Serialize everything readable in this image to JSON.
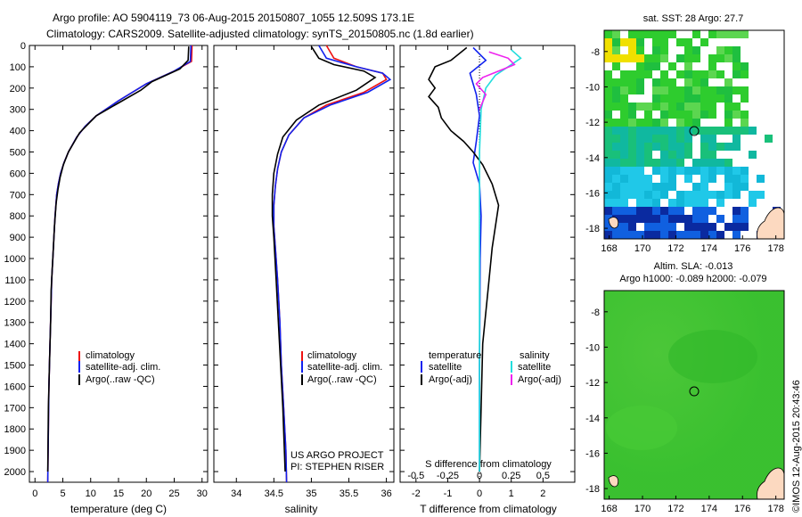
{
  "header": {
    "line1": "Argo profile: AO 5904119_73 06-Aug-2015 20150807_1055 12.509S 173.1E",
    "line2": "Climatology: CARS2009. Satellite-adjusted climatology: synTS_20150805.nc (1.8d earlier)"
  },
  "side_text": "©IMOS 12-Aug-2015 20:43:46",
  "colors": {
    "climatology": "#ee1111",
    "satellite": "#1122ee",
    "argo": "#000000",
    "sal_satellite": "#22dddd",
    "sal_argo": "#ee22ee"
  },
  "chart_data": [
    {
      "name": "temperature",
      "type": "line",
      "xlabel": "temperature (deg C)",
      "ylabel": "",
      "xlim": [
        -1,
        31
      ],
      "ylim": [
        2050,
        0
      ],
      "xticks": [
        0,
        5,
        10,
        15,
        20,
        25,
        30
      ],
      "yticks": [
        0,
        100,
        200,
        300,
        400,
        500,
        600,
        700,
        800,
        900,
        1000,
        1100,
        1200,
        1300,
        1400,
        1500,
        1600,
        1700,
        1800,
        1900,
        2000
      ],
      "legend": [
        "climatology",
        "satellite-adj. clim.",
        "Argo(..raw -QC)"
      ],
      "series": [
        {
          "name": "climatology",
          "color": "#ee1111",
          "x": [
            28.2,
            28.1,
            25,
            20,
            15,
            11,
            9,
            7.5,
            6,
            5.2,
            4.6,
            4.2,
            3.9,
            3.6,
            3.4,
            3.2,
            3.0,
            2.9,
            2.7,
            2.5,
            2.4,
            2.3
          ],
          "y": [
            0,
            75,
            120,
            180,
            260,
            330,
            380,
            430,
            500,
            550,
            600,
            650,
            700,
            800,
            900,
            1000,
            1100,
            1200,
            1400,
            1600,
            1800,
            2050
          ]
        },
        {
          "name": "satellite-adj. clim.",
          "color": "#1122ee",
          "x": [
            28.0,
            27.9,
            25,
            20,
            15,
            11,
            9,
            7.5,
            6,
            5.2,
            4.6,
            4.2,
            3.9,
            3.6,
            3.4,
            3.2,
            3.0,
            2.9,
            2.7,
            2.5,
            2.4,
            2.3
          ],
          "y": [
            0,
            75,
            120,
            180,
            260,
            330,
            380,
            430,
            500,
            550,
            600,
            650,
            700,
            800,
            900,
            1000,
            1100,
            1200,
            1400,
            1600,
            1800,
            2050
          ]
        },
        {
          "name": "Argo(..raw -QC)",
          "color": "#000000",
          "x": [
            27.6,
            27.5,
            26,
            21,
            19,
            15,
            11,
            8,
            6,
            5.1,
            4.5,
            4.1,
            3.8,
            3.5,
            3.3,
            3.1,
            2.9,
            2.8,
            2.6,
            2.4,
            2.3
          ],
          "y": [
            5,
            70,
            110,
            170,
            210,
            270,
            330,
            410,
            500,
            560,
            620,
            680,
            740,
            850,
            950,
            1050,
            1150,
            1300,
            1500,
            1700,
            2000
          ]
        }
      ]
    },
    {
      "name": "salinity",
      "type": "line",
      "xlabel": "salinity",
      "ylabel": "",
      "xlim": [
        33.7,
        36.1
      ],
      "ylim": [
        2050,
        0
      ],
      "xticks": [
        34,
        34.5,
        35,
        35.5,
        36
      ],
      "xticklabels": [
        "34",
        "34.5",
        "35",
        "35.5",
        "36"
      ],
      "legend": [
        "climatology",
        "satellite-adj. clim.",
        "Argo(..raw -QC)"
      ],
      "annotation": [
        "US ARGO PROJECT",
        "PI: STEPHEN RISER"
      ],
      "series": [
        {
          "name": "climatology",
          "color": "#ee1111",
          "x": [
            35.2,
            35.3,
            35.6,
            35.95,
            36.0,
            35.7,
            35.2,
            34.9,
            34.7,
            34.6,
            34.55,
            34.52,
            34.5,
            34.5,
            34.52,
            34.55,
            34.58,
            34.6,
            34.63,
            34.66,
            34.67
          ],
          "y": [
            0,
            60,
            100,
            130,
            160,
            220,
            280,
            340,
            420,
            500,
            580,
            660,
            750,
            850,
            950,
            1100,
            1300,
            1500,
            1700,
            1900,
            2050
          ]
        },
        {
          "name": "satellite-adj. clim.",
          "color": "#1122ee",
          "x": [
            35.1,
            35.2,
            35.6,
            35.95,
            36.05,
            35.75,
            35.25,
            34.9,
            34.7,
            34.6,
            34.55,
            34.52,
            34.5,
            34.5,
            34.52,
            34.55,
            34.58,
            34.6,
            34.63,
            34.66,
            34.67
          ],
          "y": [
            0,
            60,
            100,
            130,
            160,
            220,
            280,
            340,
            420,
            500,
            580,
            660,
            750,
            850,
            950,
            1100,
            1300,
            1500,
            1700,
            1900,
            2050
          ]
        },
        {
          "name": "Argo(..raw -QC)",
          "color": "#000000",
          "x": [
            35.0,
            35.1,
            35.3,
            35.7,
            35.85,
            35.6,
            35.1,
            34.8,
            34.62,
            34.55,
            34.5,
            34.48,
            34.48,
            34.5,
            34.53,
            34.56,
            34.59,
            34.62,
            34.65
          ],
          "y": [
            5,
            60,
            90,
            120,
            150,
            210,
            280,
            350,
            430,
            510,
            600,
            700,
            800,
            900,
            1100,
            1300,
            1500,
            1700,
            2000
          ]
        }
      ]
    },
    {
      "name": "difference",
      "type": "line",
      "xlabel": "T difference from climatology",
      "ylabel": "",
      "xlim": [
        -2.5,
        3.0
      ],
      "ylim": [
        2050,
        0
      ],
      "xticks": [
        -2,
        -1,
        0,
        1,
        2
      ],
      "xticklabels": [
        "-2",
        "-1",
        "0",
        "1",
        "2"
      ],
      "top_xlabel": "S difference from climatology",
      "top_xticks": [
        -0.5,
        -0.25,
        0,
        0.25,
        0.5
      ],
      "top_xticklabels": [
        "-0.5",
        "-0.25",
        "0",
        "0.25",
        "0.5"
      ],
      "legend_headers": [
        "temperature",
        "salinity"
      ],
      "legend": [
        "satellite",
        "Argo(-adj)",
        "satellite",
        "Argo(-adj)"
      ],
      "series": [
        {
          "name": "temperature satellite",
          "color": "#1122ee",
          "x": [
            -0.2,
            0.2,
            -0.3,
            -0.1,
            0.0,
            -0.1,
            -0.2,
            0.0,
            0.05,
            0.02,
            0.0,
            0.0
          ],
          "y": [
            10,
            70,
            130,
            230,
            330,
            450,
            550,
            650,
            800,
            1000,
            1500,
            2000
          ]
        },
        {
          "name": "temperature Argo(-adj)",
          "color": "#000000",
          "x": [
            -0.4,
            -0.9,
            -1.4,
            -1.5,
            -1.6,
            -1.4,
            -1.6,
            -1.3,
            -1.2,
            -0.9,
            -0.5,
            -0.2,
            0.1,
            0.4,
            0.6,
            0.5,
            0.4,
            0.3,
            0.1,
            0.05,
            0.0
          ],
          "y": [
            10,
            70,
            100,
            130,
            160,
            200,
            240,
            290,
            340,
            400,
            450,
            500,
            560,
            650,
            750,
            850,
            950,
            1100,
            1400,
            1700,
            2000
          ]
        },
        {
          "name": "salinity satellite",
          "color": "#22dddd",
          "x": [
            1.0,
            1.3,
            0.9,
            0.5,
            0.2,
            0.05,
            0.0,
            0.0,
            0.0,
            0.0
          ],
          "y": [
            20,
            60,
            100,
            140,
            200,
            300,
            500,
            800,
            1200,
            2000
          ]
        },
        {
          "name": "salinity Argo(-adj)",
          "color": "#ee22ee",
          "x": [
            0.3,
            0.9,
            1.1,
            0.6,
            0.1,
            -0.1,
            0.2,
            0.0
          ],
          "y": [
            30,
            60,
            90,
            120,
            150,
            180,
            230,
            300
          ]
        }
      ]
    }
  ],
  "maps": [
    {
      "name": "sst",
      "title": "sat. SST: 28 Argo: 27.7",
      "xticks": [
        168,
        170,
        172,
        174,
        176,
        178
      ],
      "yticks": [
        -8,
        -10,
        -12,
        -14,
        -16,
        -18
      ],
      "xlim": [
        167.7,
        178.5
      ],
      "ylim": [
        -18.6,
        -6.8
      ],
      "marker": {
        "lon": 173.1,
        "lat": -12.5
      }
    },
    {
      "name": "sla",
      "title_line1": "Altim. SLA: -0.013",
      "title_line2": "Argo h1000: -0.089 h2000: -0.079",
      "xticks": [
        168,
        170,
        172,
        174,
        176,
        178
      ],
      "yticks": [
        -8,
        -10,
        -12,
        -14,
        -16,
        -18
      ],
      "xlim": [
        167.7,
        178.5
      ],
      "ylim": [
        -18.6,
        -6.8
      ],
      "marker": {
        "lon": 173.1,
        "lat": -12.5
      }
    }
  ]
}
